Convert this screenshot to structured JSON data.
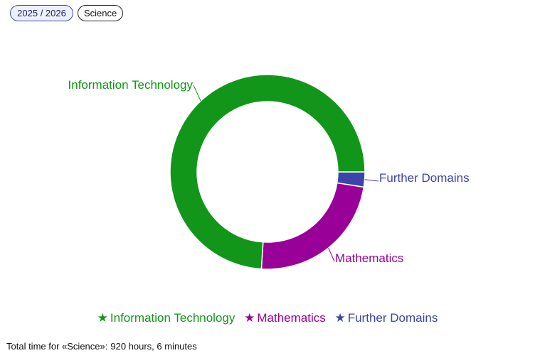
{
  "header": {
    "year_chip": "2025 / 2026",
    "subject_chip": "Science"
  },
  "chart_data": {
    "type": "pie",
    "style": "donut",
    "title": "",
    "labels_outside": true,
    "legend_placement": "bottom",
    "start_angle_deg": 90,
    "direction": "counterclockwise",
    "slices": [
      {
        "label": "Further Domains",
        "value": 2.5,
        "color": "#3b44a8"
      },
      {
        "label": "Mathematics",
        "value": 23.5,
        "color": "#980098"
      },
      {
        "label": "Information Technology",
        "value": 74.0,
        "color": "#12961a"
      }
    ]
  },
  "legend": {
    "marker": "★",
    "items": [
      {
        "label": "Information Technology",
        "color": "#12961a"
      },
      {
        "label": "Mathematics",
        "color": "#980098"
      },
      {
        "label": "Further Domains",
        "color": "#3b44a8"
      }
    ]
  },
  "footer": {
    "label": "Total time for «Science»:",
    "value": "920 hours, 6 minutes"
  }
}
